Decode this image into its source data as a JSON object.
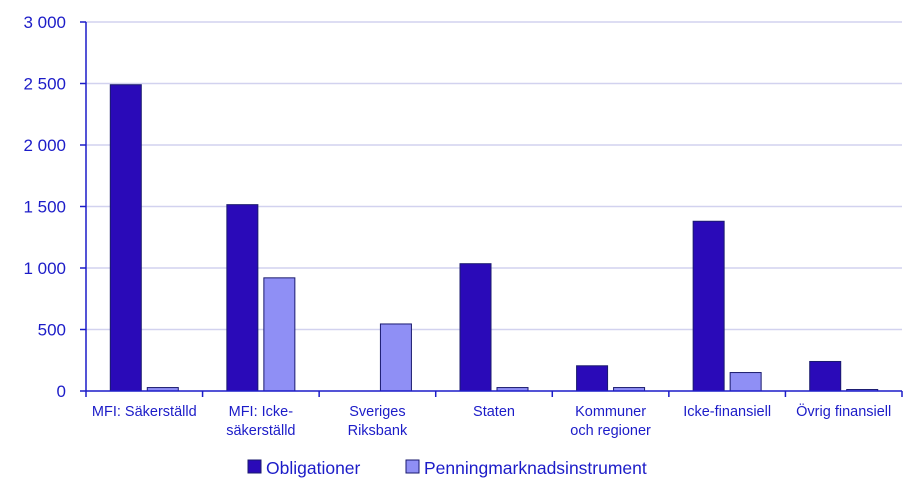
{
  "chart_data": {
    "type": "bar",
    "categories": [
      [
        "MFI: Säkerställd"
      ],
      [
        "MFI: Icke-",
        "säkerställd"
      ],
      [
        "Sveriges",
        "Riksbank"
      ],
      [
        "Staten"
      ],
      [
        "Kommuner",
        "och regioner"
      ],
      [
        "Icke-finansiell"
      ],
      [
        "Övrig finansiell"
      ]
    ],
    "series": [
      {
        "name": "Obligationer",
        "color": "#2a0ab8",
        "values": [
          2490,
          1515,
          0,
          1035,
          205,
          1380,
          240
        ]
      },
      {
        "name": "Penningmarknadsinstrument",
        "color": "#8f8ff5",
        "values": [
          28,
          920,
          545,
          28,
          28,
          150,
          12
        ]
      }
    ],
    "yticks": [
      {
        "value": 0,
        "label": "0"
      },
      {
        "value": 500,
        "label": "500"
      },
      {
        "value": 1000,
        "label": "1 000"
      },
      {
        "value": 1500,
        "label": "1 500"
      },
      {
        "value": 2000,
        "label": "2 000"
      },
      {
        "value": 2500,
        "label": "2 500"
      },
      {
        "value": 3000,
        "label": "3 000"
      }
    ],
    "ylim": [
      0,
      3000
    ],
    "title": "",
    "xlabel": "",
    "ylabel": "",
    "grid": true,
    "legend_position": "bottom",
    "colors": {
      "text": "#1c1cc8",
      "axis": "#1c1cc8",
      "grid": "#d2d2ef"
    }
  }
}
